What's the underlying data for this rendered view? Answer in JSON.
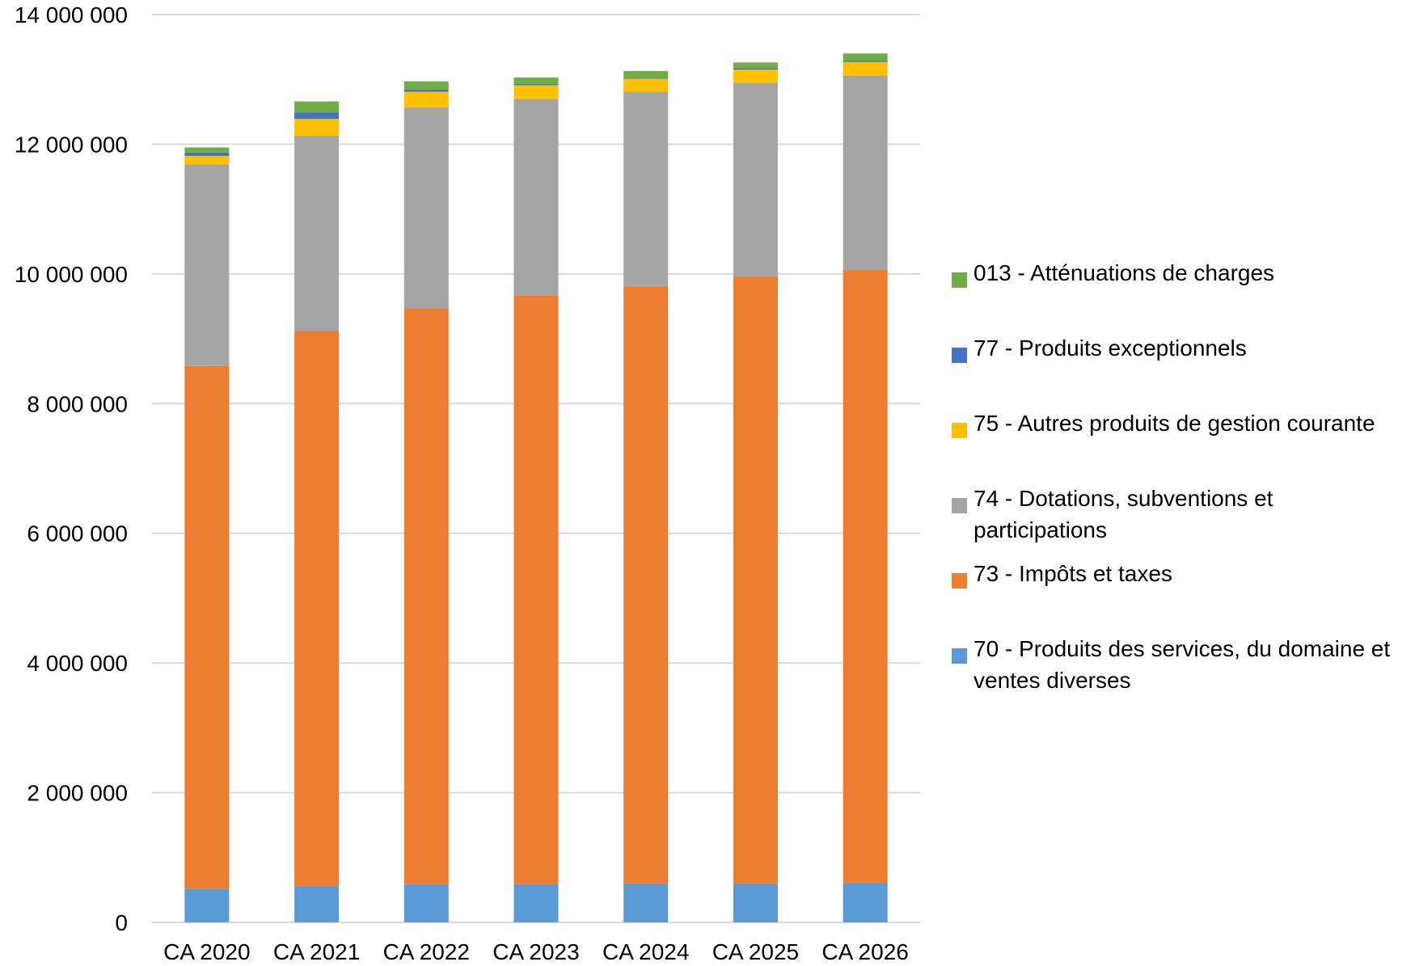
{
  "chart_data": {
    "type": "bar",
    "stacked": true,
    "title": "",
    "xlabel": "",
    "ylabel": "",
    "ylim": [
      0,
      14000000
    ],
    "yticks": [
      "0",
      "2 000 000",
      "4 000 000",
      "6 000 000",
      "8 000 000",
      "10 000 000",
      "12 000 000",
      "14 000 000"
    ],
    "grid": "horizontal",
    "legend_position": "right",
    "categories": [
      "CA 2020",
      "CA 2021",
      "CA 2022",
      "CA 2023",
      "CA 2024",
      "CA 2025",
      "CA 2026"
    ],
    "series": [
      {
        "name": "70 - Produits des services, du domaine et ventes diverses",
        "color": "#5B9BD5",
        "values": [
          520000,
          560000,
          590000,
          590000,
          600000,
          600000,
          610000
        ]
      },
      {
        "name": "73 - Impôts et taxes",
        "color": "#ED7D31",
        "values": [
          8060000,
          8560000,
          8880000,
          9080000,
          9210000,
          9360000,
          9450000
        ]
      },
      {
        "name": "74 - Dotations, subventions et participations",
        "color": "#A5A5A5",
        "values": [
          3110000,
          3010000,
          3100000,
          3030000,
          3000000,
          2990000,
          3000000
        ]
      },
      {
        "name": "75 - Autres produits de gestion courante",
        "color": "#FFC000",
        "values": [
          130000,
          260000,
          240000,
          210000,
          200000,
          200000,
          210000
        ]
      },
      {
        "name": "77 - Produits exceptionnels",
        "color": "#4472C4",
        "values": [
          50000,
          100000,
          30000,
          20000,
          10000,
          20000,
          20000
        ]
      },
      {
        "name": "013 - Atténuations de charges",
        "color": "#70AD47",
        "values": [
          80000,
          170000,
          130000,
          100000,
          110000,
          90000,
          110000
        ]
      }
    ],
    "legend_order": [
      5,
      4,
      3,
      2,
      1,
      0
    ]
  },
  "style": {
    "gridline_color": "#D9D9D9",
    "text_color": "#000000"
  }
}
